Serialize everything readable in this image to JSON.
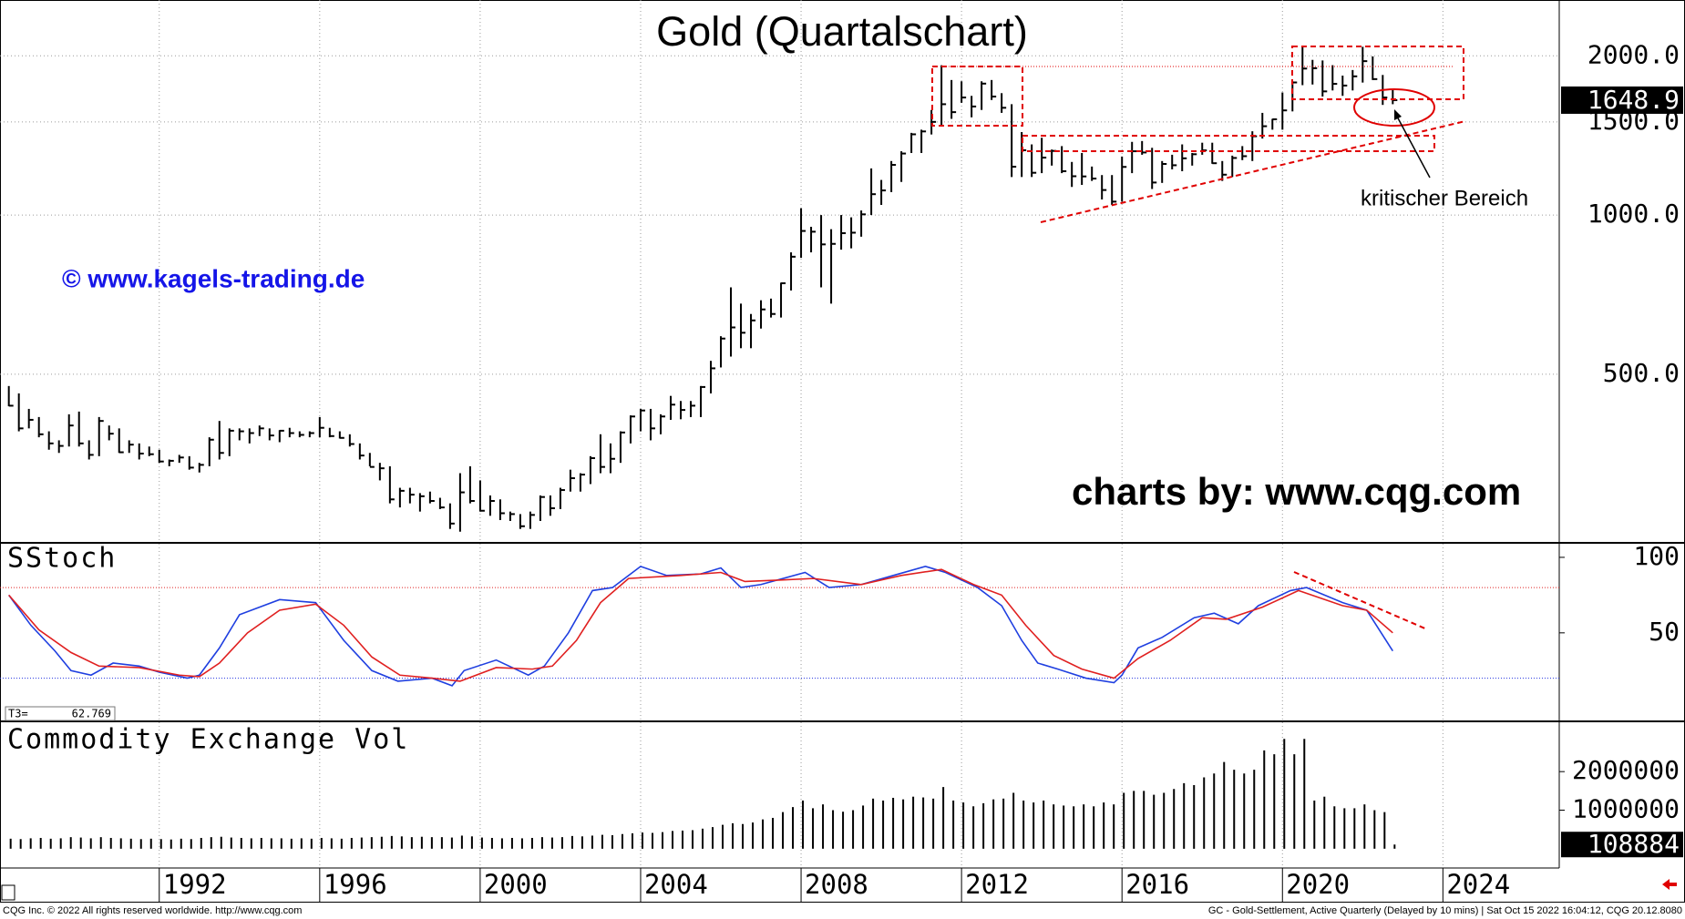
{
  "chart_data": [
    {
      "type": "ohlc",
      "title": "Gold (Quartalschart)",
      "color": "#000000",
      "yscale": "log",
      "ylim": [
        240,
        2550
      ],
      "yticks": [
        {
          "value": 500,
          "label": "500.0"
        },
        {
          "value": 1000,
          "label": "1000.0"
        },
        {
          "value": 1500,
          "label": "1500.0"
        },
        {
          "value": 2000,
          "label": "2000.0"
        }
      ],
      "xlim": [
        1988.03,
        2026.9
      ],
      "xticks": [
        1992,
        1996,
        2000,
        2004,
        2008,
        2012,
        2016,
        2020,
        2024
      ],
      "grid": true,
      "x": [
        1988.25,
        1988.5,
        1988.75,
        1989,
        1989.25,
        1989.5,
        1989.75,
        1990,
        1990.25,
        1990.5,
        1990.75,
        1991,
        1991.25,
        1991.5,
        1991.75,
        1992,
        1992.25,
        1992.5,
        1992.75,
        1993,
        1993.25,
        1993.5,
        1993.75,
        1994,
        1994.25,
        1994.5,
        1994.75,
        1995,
        1995.25,
        1995.5,
        1995.75,
        1996,
        1996.25,
        1996.5,
        1996.75,
        1997,
        1997.25,
        1997.5,
        1997.75,
        1998,
        1998.25,
        1998.5,
        1998.75,
        1999,
        1999.25,
        1999.5,
        1999.75,
        2000,
        2000.25,
        2000.5,
        2000.75,
        2001,
        2001.25,
        2001.5,
        2001.75,
        2002,
        2002.25,
        2002.5,
        2002.75,
        2003,
        2003.25,
        2003.5,
        2003.75,
        2004,
        2004.25,
        2004.5,
        2004.75,
        2005,
        2005.25,
        2005.5,
        2005.75,
        2006,
        2006.25,
        2006.5,
        2006.75,
        2007,
        2007.25,
        2007.5,
        2007.75,
        2008,
        2008.25,
        2008.5,
        2008.75,
        2009,
        2009.25,
        2009.5,
        2009.75,
        2010,
        2010.25,
        2010.5,
        2010.75,
        2011,
        2011.25,
        2011.5,
        2011.75,
        2012,
        2012.25,
        2012.5,
        2012.75,
        2013,
        2013.25,
        2013.5,
        2013.75,
        2014,
        2014.25,
        2014.5,
        2014.75,
        2015,
        2015.25,
        2015.5,
        2015.75,
        2016,
        2016.25,
        2016.5,
        2016.75,
        2017,
        2017.25,
        2017.5,
        2017.75,
        2018,
        2018.25,
        2018.5,
        2018.75,
        2019,
        2019.25,
        2019.5,
        2019.75,
        2020,
        2020.25,
        2020.5,
        2020.75,
        2021,
        2021.25,
        2021.5,
        2021.75,
        2022,
        2022.25,
        2022.5,
        2022.75
      ],
      "high": [
        475,
        460,
        430,
        415,
        390,
        375,
        420,
        425,
        375,
        415,
        400,
        395,
        375,
        370,
        365,
        360,
        345,
        352,
        350,
        340,
        380,
        408,
        395,
        395,
        395,
        400,
        395,
        392,
        396,
        390,
        390,
        415,
        396,
        390,
        385,
        370,
        355,
        340,
        335,
        305,
        305,
        298,
        300,
        292,
        285,
        325,
        335,
        315,
        295,
        290,
        275,
        272,
        275,
        295,
        295,
        305,
        330,
        325,
        350,
        385,
        370,
        390,
        418,
        430,
        430,
        420,
        455,
        445,
        445,
        475,
        530,
        590,
        730,
        680,
        650,
        690,
        695,
        745,
        850,
        1030,
        950,
        1000,
        940,
        1000,
        990,
        1020,
        1225,
        1165,
        1265,
        1320,
        1430,
        1450,
        1580,
        1920,
        1800,
        1790,
        1680,
        1790,
        1800,
        1700,
        1620,
        1435,
        1360,
        1400,
        1330,
        1350,
        1260,
        1310,
        1235,
        1190,
        1190,
        1290,
        1375,
        1380,
        1340,
        1265,
        1300,
        1360,
        1310,
        1370,
        1370,
        1265,
        1295,
        1350,
        1440,
        1560,
        1520,
        1705,
        1790,
        2090,
        1965,
        1960,
        1920,
        1835,
        1880,
        2080,
        1995,
        1840,
        1730
      ],
      "low": [
        435,
        390,
        395,
        380,
        360,
        355,
        365,
        365,
        345,
        350,
        375,
        355,
        355,
        345,
        350,
        340,
        335,
        340,
        330,
        326,
        335,
        345,
        350,
        375,
        370,
        382,
        375,
        372,
        380,
        380,
        380,
        380,
        380,
        378,
        365,
        345,
        335,
        315,
        285,
        280,
        285,
        275,
        285,
        278,
        255,
        252,
        285,
        275,
        270,
        265,
        264,
        255,
        255,
        264,
        270,
        278,
        300,
        300,
        310,
        325,
        325,
        340,
        370,
        390,
        375,
        385,
        410,
        411,
        415,
        415,
        460,
        515,
        540,
        560,
        560,
        610,
        640,
        640,
        720,
        830,
        850,
        730,
        680,
        860,
        865,
        910,
        1000,
        1045,
        1105,
        1155,
        1310,
        1310,
        1420,
        1480,
        1520,
        1630,
        1530,
        1580,
        1650,
        1560,
        1180,
        1180,
        1180,
        1200,
        1240,
        1200,
        1130,
        1140,
        1160,
        1070,
        1045,
        1060,
        1200,
        1300,
        1120,
        1150,
        1220,
        1210,
        1240,
        1300,
        1250,
        1160,
        1180,
        1270,
        1265,
        1395,
        1450,
        1450,
        1570,
        1760,
        1765,
        1675,
        1720,
        1680,
        1720,
        1780,
        1800,
        1615,
        1620
      ],
      "close": [
        436,
        395,
        410,
        385,
        370,
        366,
        400,
        370,
        352,
        408,
        386,
        356,
        368,
        354,
        353,
        342,
        343,
        348,
        333,
        337,
        376,
        355,
        391,
        390,
        387,
        395,
        383,
        391,
        387,
        384,
        387,
        396,
        382,
        379,
        369,
        351,
        334,
        332,
        290,
        301,
        296,
        294,
        288,
        280,
        261,
        299,
        288,
        276,
        288,
        273,
        272,
        258,
        271,
        293,
        279,
        302,
        318,
        323,
        347,
        334,
        346,
        388,
        416,
        427,
        395,
        416,
        438,
        428,
        436,
        473,
        513,
        584,
        613,
        599,
        632,
        663,
        650,
        743,
        834,
        933,
        930,
        880,
        882,
        924,
        926,
        1003,
        1095,
        1113,
        1244,
        1307,
        1421,
        1439,
        1500,
        1620,
        1565,
        1668,
        1604,
        1772,
        1675,
        1595,
        1234,
        1326,
        1202,
        1284,
        1322,
        1210,
        1184,
        1183,
        1172,
        1115,
        1060,
        1233,
        1320,
        1313,
        1152,
        1249,
        1242,
        1280,
        1303,
        1325,
        1253,
        1192,
        1282,
        1292,
        1409,
        1472,
        1517,
        1577,
        1781,
        1892,
        1895,
        1713,
        1770,
        1757,
        1829,
        1954,
        1807,
        1668,
        1648.9
      ],
      "watermark": "© www.kagels-trading.de",
      "credit": "charts by: www.cqg.com",
      "annotation": "kritischer Bereich"
    },
    {
      "type": "line",
      "title": "SStoch",
      "ylim": [
        -8,
        109
      ],
      "yticks": [
        50,
        100
      ],
      "upper_level": 80,
      "lower_level": 20,
      "readout": {
        "label": "T3=",
        "value": 62.769
      },
      "series": [
        {
          "color": "#1f3fe0",
          "x": [
            1988.25,
            1988.8,
            1989.4,
            1989.8,
            1990.3,
            1990.85,
            1991.5,
            1992,
            1992.7,
            1993,
            1993.5,
            1994,
            1995,
            1995.9,
            1996.6,
            1997.3,
            1997.95,
            1998.8,
            1999.3,
            1999.6,
            2000.4,
            2001.2,
            2001.6,
            2002.2,
            2002.8,
            2003.3,
            2004,
            2004.65,
            2005.5,
            2006,
            2006.5,
            2007,
            2008.1,
            2008.7,
            2009.5,
            2010.3,
            2011.1,
            2011.6,
            2012.4,
            2013,
            2013.5,
            2013.9,
            2014.4,
            2015.1,
            2015.8,
            2016,
            2016.4,
            2017,
            2017.8,
            2018.3,
            2018.9,
            2019.4,
            2020.2,
            2020.6,
            2021.5,
            2022.1,
            2022.75
          ],
          "values": [
            75,
            55,
            38,
            25,
            22,
            30,
            28,
            24,
            20,
            22,
            40,
            62,
            72,
            70,
            45,
            25,
            18,
            20,
            15,
            25,
            32,
            22,
            28,
            50,
            78,
            80,
            94,
            88,
            89,
            93,
            80,
            82,
            90,
            80,
            82,
            88,
            94,
            90,
            80,
            68,
            45,
            30,
            26,
            20,
            17,
            22,
            40,
            47,
            60,
            63,
            56,
            68,
            78,
            80,
            70,
            65,
            38
          ]
        },
        {
          "color": "#e02020",
          "x": [
            1988.25,
            1989,
            1989.8,
            1990.5,
            1991.5,
            1992.5,
            1993,
            1993.5,
            1994.2,
            1995,
            1995.9,
            1996.6,
            1997.3,
            1998,
            1998.8,
            1999.5,
            2000.4,
            2001.3,
            2001.8,
            2002.4,
            2003,
            2003.7,
            2005,
            2006,
            2006.6,
            2007.5,
            2008.3,
            2009.5,
            2010.5,
            2011.5,
            2012.3,
            2013,
            2013.6,
            2014.3,
            2015,
            2015.8,
            2016.4,
            2017.2,
            2018,
            2018.6,
            2019.5,
            2020.4,
            2021.5,
            2022.1,
            2022.75
          ],
          "values": [
            75,
            52,
            37,
            28,
            27,
            22,
            21,
            30,
            50,
            65,
            69,
            55,
            34,
            22,
            20,
            18,
            27,
            26,
            28,
            45,
            70,
            86,
            88,
            90,
            84,
            85,
            86,
            82,
            88,
            92,
            82,
            75,
            55,
            35,
            26,
            20,
            33,
            45,
            60,
            59,
            67,
            78,
            68,
            65,
            50
          ]
        }
      ]
    },
    {
      "type": "bar",
      "title": "Commodity Exchange Vol",
      "color": "#000000",
      "ylim": [
        -500000,
        3280000
      ],
      "yticks": [
        1000000,
        2000000
      ],
      "values": [
        260000,
        250000,
        270000,
        280000,
        260000,
        270000,
        300000,
        290000,
        270000,
        300000,
        280000,
        270000,
        260000,
        250000,
        260000,
        250000,
        240000,
        260000,
        250000,
        280000,
        300000,
        310000,
        290000,
        280000,
        270000,
        280000,
        270000,
        270000,
        260000,
        270000,
        260000,
        280000,
        270000,
        260000,
        280000,
        290000,
        300000,
        310000,
        330000,
        320000,
        300000,
        310000,
        300000,
        300000,
        290000,
        340000,
        320000,
        290000,
        280000,
        270000,
        280000,
        270000,
        280000,
        300000,
        290000,
        300000,
        330000,
        320000,
        340000,
        360000,
        350000,
        380000,
        400000,
        420000,
        410000,
        430000,
        460000,
        470000,
        480000,
        520000,
        560000,
        620000,
        660000,
        640000,
        680000,
        760000,
        800000,
        950000,
        1080000,
        1250000,
        1050000,
        1150000,
        1000000,
        960000,
        1000000,
        1120000,
        1300000,
        1250000,
        1320000,
        1280000,
        1350000,
        1330000,
        1300000,
        1600000,
        1250000,
        1200000,
        1100000,
        1180000,
        1280000,
        1300000,
        1450000,
        1250000,
        1200000,
        1250000,
        1150000,
        1120000,
        1100000,
        1150000,
        1100000,
        1200000,
        1150000,
        1450000,
        1500000,
        1500000,
        1400000,
        1450000,
        1550000,
        1700000,
        1650000,
        1850000,
        1950000,
        2250000,
        2050000,
        1950000,
        2050000,
        2550000,
        2450000,
        2850000,
        2450000,
        2850000,
        1250000,
        1350000,
        1100000,
        1050000,
        1050000,
        1150000,
        1000000,
        950000,
        108884
      ]
    }
  ],
  "footer": {
    "left": "CQG Inc. © 2022 All rights reserved worldwide. http://www.cqg.com",
    "right": "GC - Gold-Settlement, Active Quarterly (Delayed by 10 mins) | Sat Oct 15 2022 16:04:12, CQG 20.12.8080"
  }
}
